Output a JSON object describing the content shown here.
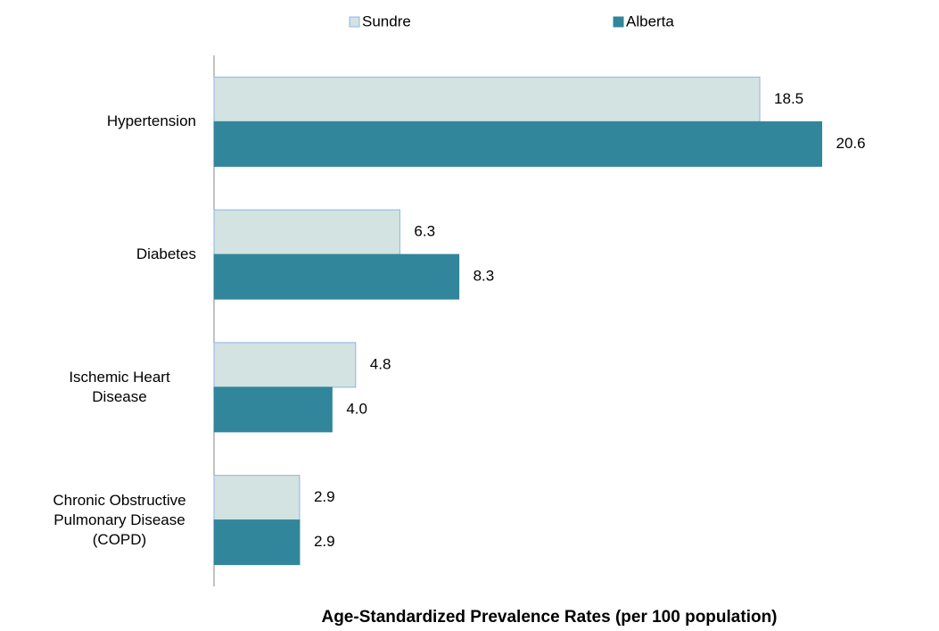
{
  "chart_data": {
    "type": "hbar",
    "xlabel": "Age-Standardized Prevalence Rates (per 100 population)",
    "categories": [
      "Hypertension",
      "Diabetes",
      "Ischemic Heart Disease",
      "Chronic Obstructive Pulmonary Disease (COPD)"
    ],
    "series": [
      {
        "name": "Sundre",
        "color": "#d3e3e1",
        "edge": "#8eb4e3",
        "values": [
          18.5,
          6.3,
          4.8,
          2.9
        ],
        "value_labels": [
          "18.5",
          "6.3",
          "4.8",
          "2.9"
        ]
      },
      {
        "name": "Alberta",
        "color": "#31869b",
        "edge": "#31869b",
        "values": [
          20.6,
          8.3,
          4.0,
          2.9
        ],
        "value_labels": [
          "20.6",
          "8.3",
          "4.0",
          "2.9"
        ]
      }
    ],
    "xlim": [
      0,
      24
    ],
    "legend": "top"
  }
}
